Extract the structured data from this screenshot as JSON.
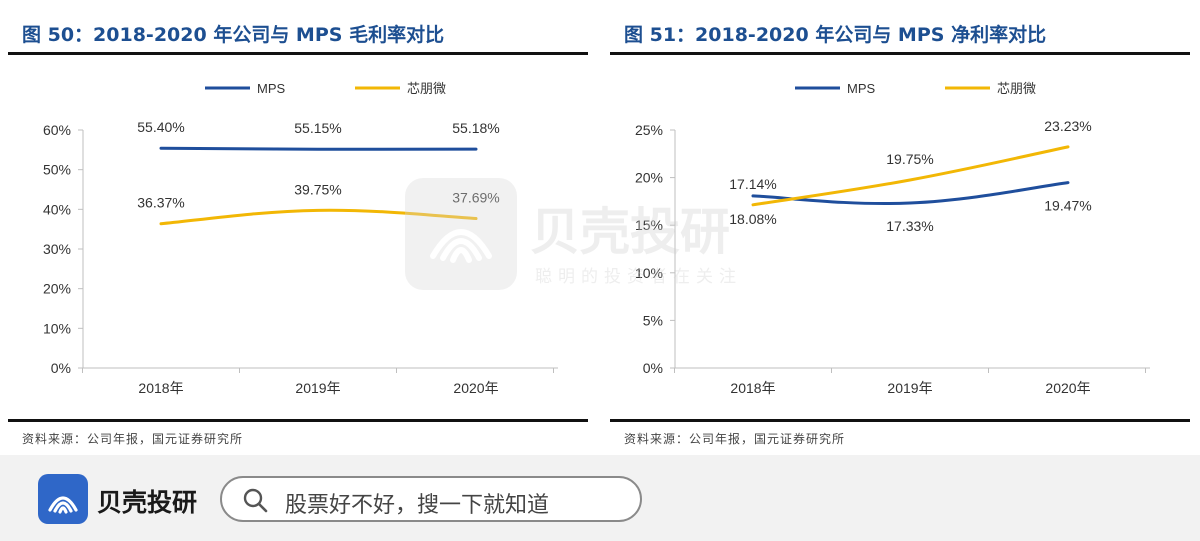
{
  "left_panel": {
    "title": "图 50：2018-2020 年公司与 MPS 毛利率对比",
    "source": "资料来源：公司年报，国元证券研究所"
  },
  "right_panel": {
    "title": "图 51：2018-2020 年公司与 MPS 净利率对比",
    "source": "资料来源：公司年报，国元证券研究所"
  },
  "watermark": {
    "name": "贝壳投研",
    "tagline": "聪明的投资者在关注"
  },
  "footer": {
    "brand": "贝壳投研",
    "search_placeholder": "股票好不好，搜一下就知道"
  },
  "colors": {
    "mps": "#1f4e9c",
    "company": "#f2b705",
    "title": "#1d4f91"
  },
  "chart_data": [
    {
      "type": "line",
      "title": "2018-2020 年公司与 MPS 毛利率对比",
      "categories": [
        "2018年",
        "2019年",
        "2020年"
      ],
      "series": [
        {
          "name": "MPS",
          "values": [
            55.4,
            55.15,
            55.18
          ],
          "labels": [
            "55.40%",
            "55.15%",
            "55.18%"
          ],
          "color": "#1f4e9c"
        },
        {
          "name": "芯朋微",
          "values": [
            36.37,
            39.75,
            37.69
          ],
          "labels": [
            "36.37%",
            "39.75%",
            "37.69%"
          ],
          "color": "#f2b705"
        }
      ],
      "ylim": [
        0,
        60
      ],
      "yticks": [
        0,
        10,
        20,
        30,
        40,
        50,
        60
      ],
      "ytick_labels": [
        "0%",
        "10%",
        "20%",
        "30%",
        "40%",
        "50%",
        "60%"
      ],
      "legend": "top-center",
      "grid": false,
      "label_pos": [
        [
          "above",
          "above",
          "above"
        ],
        [
          "above",
          "above",
          "above"
        ]
      ]
    },
    {
      "type": "line",
      "title": "2018-2020 年公司与 MPS 净利率对比",
      "categories": [
        "2018年",
        "2019年",
        "2020年"
      ],
      "series": [
        {
          "name": "MPS",
          "values": [
            18.08,
            17.33,
            19.47
          ],
          "labels": [
            "18.08%",
            "17.33%",
            "19.47%"
          ],
          "color": "#1f4e9c"
        },
        {
          "name": "芯朋微",
          "values": [
            17.14,
            19.75,
            23.23
          ],
          "labels": [
            "17.14%",
            "19.75%",
            "23.23%"
          ],
          "color": "#f2b705"
        }
      ],
      "ylim": [
        0,
        25
      ],
      "yticks": [
        0,
        5,
        10,
        15,
        20,
        25
      ],
      "ytick_labels": [
        "0%",
        "5%",
        "10%",
        "15%",
        "20%",
        "25%"
      ],
      "legend": "top-center",
      "grid": false,
      "label_pos": [
        [
          "below",
          "below",
          "below"
        ],
        [
          "above",
          "above",
          "above"
        ]
      ]
    }
  ]
}
